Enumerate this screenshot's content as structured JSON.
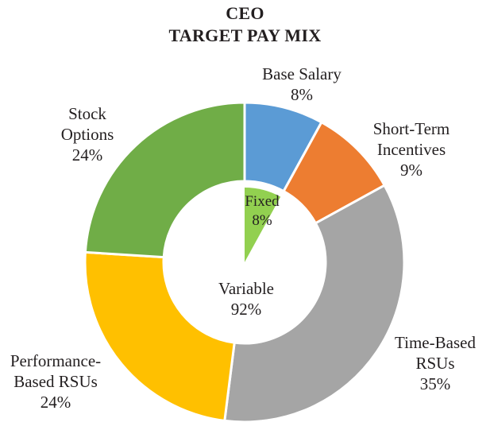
{
  "chart_data": {
    "type": "donut",
    "title": "CEO",
    "subtitle": "TARGET PAY MIX",
    "outer_ring": [
      {
        "name": "Base Salary",
        "label_lines": [
          "Base Salary"
        ],
        "value": 8,
        "value_label": "8%",
        "color": "#5b9bd5"
      },
      {
        "name": "Short-Term Incentives",
        "label_lines": [
          "Short-Term",
          "Incentives"
        ],
        "value": 9,
        "value_label": "9%",
        "color": "#ed7d31"
      },
      {
        "name": "Time-Based RSUs",
        "label_lines": [
          "Time-Based",
          "RSUs"
        ],
        "value": 35,
        "value_label": "35%",
        "color": "#a5a5a5"
      },
      {
        "name": "Performance-Based RSUs",
        "label_lines": [
          "Performance-",
          "Based RSUs"
        ],
        "value": 24,
        "value_label": "24%",
        "color": "#ffc000"
      },
      {
        "name": "Stock Options",
        "label_lines": [
          "Stock",
          "Options"
        ],
        "value": 24,
        "value_label": "24%",
        "color": "#70ad47"
      }
    ],
    "inner_ring": [
      {
        "name": "Fixed",
        "value": 8,
        "value_label": "8%",
        "color": "#92d050"
      },
      {
        "name": "Variable",
        "value": 92,
        "value_label": "92%",
        "color": "#ffffff"
      }
    ]
  }
}
